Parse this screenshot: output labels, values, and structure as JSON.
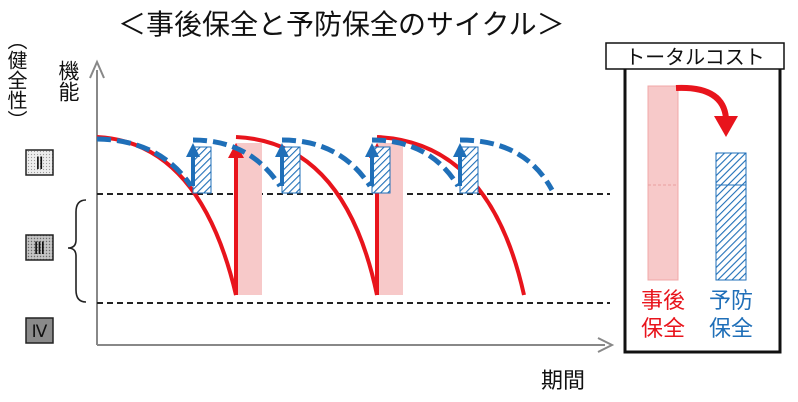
{
  "title": "＜事後保全と予防保全のサイクル＞",
  "y_axis": {
    "label_main": "機能",
    "label_sub": "（健全性）"
  },
  "x_axis": {
    "label": "期間"
  },
  "levels": [
    "Ⅱ",
    "Ⅲ",
    "Ⅳ"
  ],
  "total_cost": {
    "title": "トータルコスト",
    "corrective_label": "事後保全",
    "preventive_label": "予防保全",
    "corrective_color": "#e8141c",
    "preventive_color": "#1f6fb8"
  },
  "colors": {
    "corrective": "#e8141c",
    "preventive": "#1f6fb8",
    "corrective_fill": "#f7c9c9",
    "level_gray_light": "#e6e6e6",
    "level_gray_mid": "#b8b8b8",
    "level_gray_dark": "#8c8c8c"
  }
}
